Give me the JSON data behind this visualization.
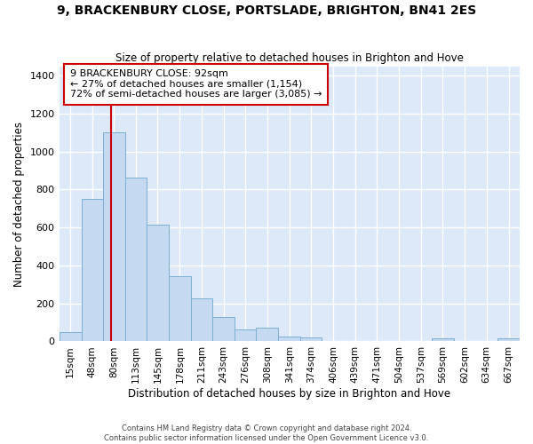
{
  "title1": "9, BRACKENBURY CLOSE, PORTSLADE, BRIGHTON, BN41 2ES",
  "title2": "Size of property relative to detached houses in Brighton and Hove",
  "xlabel": "Distribution of detached houses by size in Brighton and Hove",
  "ylabel": "Number of detached properties",
  "footer1": "Contains HM Land Registry data © Crown copyright and database right 2024.",
  "footer2": "Contains public sector information licensed under the Open Government Licence v3.0.",
  "bar_labels": [
    "15sqm",
    "48sqm",
    "80sqm",
    "113sqm",
    "145sqm",
    "178sqm",
    "211sqm",
    "243sqm",
    "276sqm",
    "308sqm",
    "341sqm",
    "374sqm",
    "406sqm",
    "439sqm",
    "471sqm",
    "504sqm",
    "537sqm",
    "569sqm",
    "602sqm",
    "634sqm",
    "667sqm"
  ],
  "hist_counts": [
    50,
    750,
    1100,
    865,
    615,
    345,
    225,
    130,
    65,
    70,
    25,
    20,
    0,
    0,
    0,
    0,
    0,
    15,
    0,
    0,
    15
  ],
  "bin_edges": [
    15,
    48,
    80,
    113,
    145,
    178,
    211,
    243,
    276,
    308,
    341,
    374,
    406,
    439,
    471,
    504,
    537,
    569,
    602,
    634,
    667,
    700
  ],
  "bar_color": "#c5d9f1",
  "bar_edge_color": "#7aafd4",
  "bg_color": "#dde8f8",
  "grid_color": "#ffffff",
  "fig_bg_color": "#ffffff",
  "property_size": 92,
  "vline_color": "#cc0000",
  "annotation_line1": "9 BRACKENBURY CLOSE: 92sqm",
  "annotation_line2": "← 27% of detached houses are smaller (1,154)",
  "annotation_line3": "72% of semi-detached houses are larger (3,085) →",
  "ylim": [
    0,
    1450
  ],
  "yticks": [
    0,
    200,
    400,
    600,
    800,
    1000,
    1200,
    1400
  ]
}
